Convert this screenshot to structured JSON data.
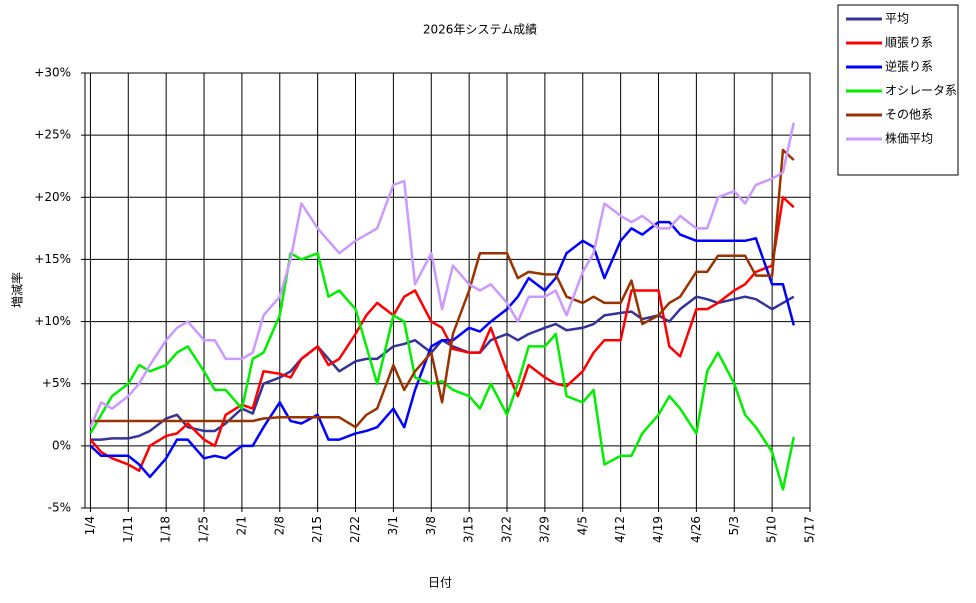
{
  "chart_data": {
    "type": "line",
    "title": "2026年システム成績",
    "xlabel": "日付",
    "ylabel": "増減率",
    "x": [
      "1/4",
      "1/6",
      "1/8",
      "1/11",
      "1/13",
      "1/15",
      "1/18",
      "1/20",
      "1/22",
      "1/25",
      "1/27",
      "1/29",
      "2/1",
      "2/3",
      "2/5",
      "2/8",
      "2/10",
      "2/12",
      "2/15",
      "2/17",
      "2/19",
      "2/22",
      "2/24",
      "2/26",
      "3/1",
      "3/3",
      "3/5",
      "3/8",
      "3/10",
      "3/12",
      "3/15",
      "3/17",
      "3/19",
      "3/22",
      "3/24",
      "3/26",
      "3/29",
      "3/31",
      "4/2",
      "4/5",
      "4/7",
      "4/9",
      "4/12",
      "4/14",
      "4/16",
      "4/19",
      "4/21",
      "4/23",
      "4/26",
      "4/28",
      "4/30",
      "5/3",
      "5/5",
      "5/7",
      "5/10",
      "5/12",
      "5/14"
    ],
    "xlim": [
      "1/3",
      "5/17"
    ],
    "xticks": [
      "1/4",
      "1/11",
      "1/18",
      "1/25",
      "2/1",
      "2/8",
      "2/15",
      "2/22",
      "3/1",
      "3/8",
      "3/15",
      "3/22",
      "3/29",
      "4/5",
      "4/12",
      "4/19",
      "4/26",
      "5/3",
      "5/10",
      "5/17"
    ],
    "ylim": [
      -5,
      30
    ],
    "yticks": [
      {
        "value": -5,
        "label": "-5%"
      },
      {
        "value": 0,
        "label": "0%"
      },
      {
        "value": 5,
        "label": "+5%"
      },
      {
        "value": 10,
        "label": "+10%"
      },
      {
        "value": 15,
        "label": "+15%"
      },
      {
        "value": 20,
        "label": "+20%"
      },
      {
        "value": 25,
        "label": "+25%"
      },
      {
        "value": 30,
        "label": "+30%"
      }
    ],
    "grid": true,
    "legend": "outside-top-right",
    "series": [
      {
        "name": "平均",
        "color": "#333399",
        "values": [
          0.5,
          0.5,
          0.6,
          0.6,
          0.8,
          1.2,
          2.2,
          2.5,
          1.5,
          1.2,
          1.2,
          1.8,
          3,
          2.6,
          5,
          5.5,
          6,
          7,
          8,
          7,
          6,
          6.8,
          7,
          7,
          8,
          8.2,
          8.5,
          7.5,
          8.5,
          8,
          7.5,
          7.5,
          8.5,
          9,
          8.5,
          9,
          9.5,
          9.8,
          9.3,
          9.5,
          9.8,
          10.5,
          10.7,
          10.8,
          10.2,
          10.5,
          10,
          11,
          12,
          11.8,
          11.5,
          11.8,
          12,
          11.8,
          11,
          11.5,
          12
        ]
      },
      {
        "name": "順張り系",
        "color": "#ff0000",
        "values": [
          0.5,
          -0.5,
          -1,
          -1.5,
          -2,
          0,
          0.8,
          1,
          1.8,
          0.5,
          0,
          2.5,
          3.3,
          3,
          6,
          5.8,
          5.5,
          7,
          8,
          6.5,
          7,
          9,
          10.5,
          11.5,
          10.5,
          12,
          12.5,
          10,
          9.5,
          7.8,
          7.5,
          7.5,
          9.5,
          6,
          4,
          6.5,
          5.5,
          5,
          4.8,
          6,
          7.5,
          8.5,
          8.5,
          12.5,
          12.5,
          12.5,
          8,
          7.2,
          11,
          11,
          11.5,
          12.5,
          13,
          14,
          14.5,
          20,
          19.2
        ]
      },
      {
        "name": "逆張り系",
        "color": "#0000ff",
        "values": [
          0,
          -0.8,
          -0.8,
          -0.8,
          -1.5,
          -2.5,
          -1,
          0.5,
          0.5,
          -1,
          -0.8,
          -1,
          0,
          0,
          1.5,
          3.5,
          2,
          1.8,
          2.5,
          0.5,
          0.5,
          1,
          1.2,
          1.5,
          3,
          1.5,
          4.5,
          8,
          8.5,
          8.5,
          9.5,
          9.2,
          10,
          11,
          12,
          13.5,
          12.5,
          13.5,
          15.5,
          16.5,
          16,
          13.5,
          16.5,
          17.5,
          17,
          18,
          18,
          17,
          16.5,
          16.5,
          16.5,
          16.5,
          16.5,
          16.7,
          13,
          13,
          9.7
        ]
      },
      {
        "name": "オシレータ系",
        "color": "#00ee00",
        "values": [
          1,
          2.5,
          4,
          5,
          6.5,
          6,
          6.5,
          7.5,
          8,
          6,
          4.5,
          4.5,
          3,
          7,
          7.5,
          10.5,
          15.5,
          15,
          15.5,
          12,
          12.5,
          11,
          8,
          5,
          10.5,
          10,
          5.5,
          5,
          5.2,
          4.5,
          4,
          3,
          5,
          2.5,
          5,
          8,
          8,
          9,
          4,
          3.5,
          4.5,
          -1.5,
          -0.8,
          -0.8,
          1,
          2.5,
          4,
          3,
          1,
          6,
          7.5,
          5,
          2.5,
          1.5,
          -0.5,
          -3.5,
          0.7
        ]
      },
      {
        "name": "その他系",
        "color": "#993300",
        "values": [
          2,
          2,
          2,
          2,
          2,
          2,
          2,
          2,
          2,
          2,
          2,
          2,
          2,
          2,
          2.2,
          2.3,
          2.3,
          2.3,
          2.3,
          2.3,
          2.3,
          1.5,
          2.5,
          3,
          6.5,
          4.5,
          6,
          7.5,
          3.5,
          9,
          12.5,
          15.5,
          15.5,
          15.5,
          13.5,
          14,
          13.8,
          13.8,
          12,
          11.5,
          12,
          11.5,
          11.5,
          13.3,
          9.8,
          10.5,
          11.5,
          12,
          14,
          14,
          15.3,
          15.3,
          15.3,
          13.7,
          13.7,
          23.8,
          23
        ]
      },
      {
        "name": "株価平均",
        "color": "#cc99ff",
        "values": [
          1.5,
          3.5,
          3,
          4,
          5,
          6.5,
          8.5,
          9.5,
          10,
          8.5,
          8.5,
          7,
          7,
          7.5,
          10.5,
          12,
          15,
          19.5,
          17.5,
          16.5,
          15.5,
          16.5,
          17,
          17.5,
          21,
          21.3,
          13,
          15.5,
          11,
          14.5,
          13,
          12.5,
          13,
          11.5,
          10,
          12,
          12,
          12.5,
          10.5,
          14,
          15.5,
          19.5,
          18.5,
          18,
          18.5,
          17.5,
          17.5,
          18.5,
          17.5,
          17.5,
          20,
          20.5,
          19.5,
          21,
          21.5,
          22,
          26
        ]
      }
    ]
  }
}
